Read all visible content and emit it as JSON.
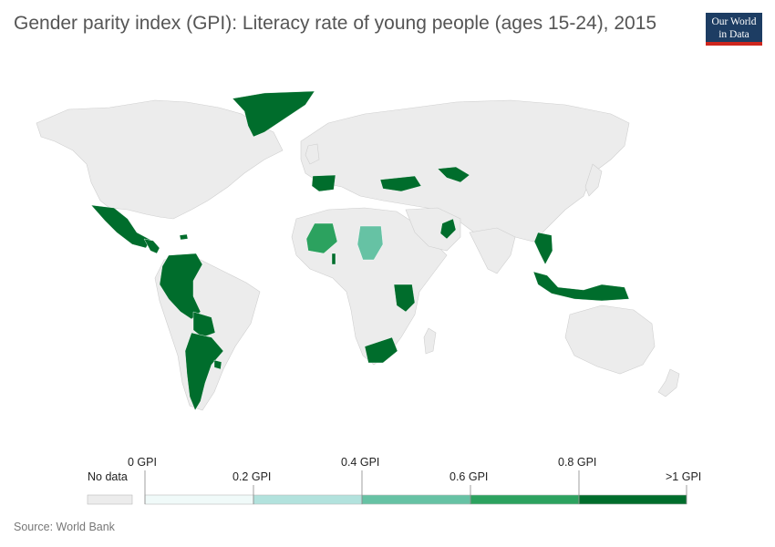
{
  "title": "Gender parity index (GPI): Literacy rate of young people (ages 15-24), 2015",
  "logo": {
    "line1": "Our World",
    "line2": "in Data"
  },
  "colors": {
    "no_data": "#ececec",
    "border": "#cfcfcf",
    "bin0": "#f0faf9",
    "bin1": "#b2e2dd",
    "bin2": "#66c2a4",
    "bin3": "#2ca25f",
    "bin4": "#006d2c"
  },
  "legend": {
    "no_data_label": "No data",
    "ticks": [
      "0 GPI",
      "0.2 GPI",
      "0.4 GPI",
      "0.6 GPI",
      "0.8 GPI",
      ">1 GPI"
    ]
  },
  "map_data": [
    {
      "region": "Greenland",
      "bin": 4
    },
    {
      "region": "Mexico",
      "bin": 4
    },
    {
      "region": "Central America",
      "bin": 4
    },
    {
      "region": "Dominican Republic",
      "bin": 4
    },
    {
      "region": "Venezuela",
      "bin": 4
    },
    {
      "region": "Colombia",
      "bin": 4
    },
    {
      "region": "Ecuador",
      "bin": 4
    },
    {
      "region": "Peru",
      "bin": 4
    },
    {
      "region": "Bolivia",
      "bin": 4
    },
    {
      "region": "Chile",
      "bin": 4
    },
    {
      "region": "Argentina",
      "bin": 4
    },
    {
      "region": "Uruguay",
      "bin": 4
    },
    {
      "region": "Spain",
      "bin": 4
    },
    {
      "region": "Turkey",
      "bin": 4
    },
    {
      "region": "Uzbekistan",
      "bin": 4
    },
    {
      "region": "Oman",
      "bin": 4
    },
    {
      "region": "Mali",
      "bin": 3
    },
    {
      "region": "Chad",
      "bin": 2
    },
    {
      "region": "Togo",
      "bin": 4
    },
    {
      "region": "Tanzania",
      "bin": 4
    },
    {
      "region": "South Africa",
      "bin": 4
    },
    {
      "region": "Thailand",
      "bin": 4
    },
    {
      "region": "Indonesia",
      "bin": 4
    }
  ],
  "source": "Source: World Bank"
}
